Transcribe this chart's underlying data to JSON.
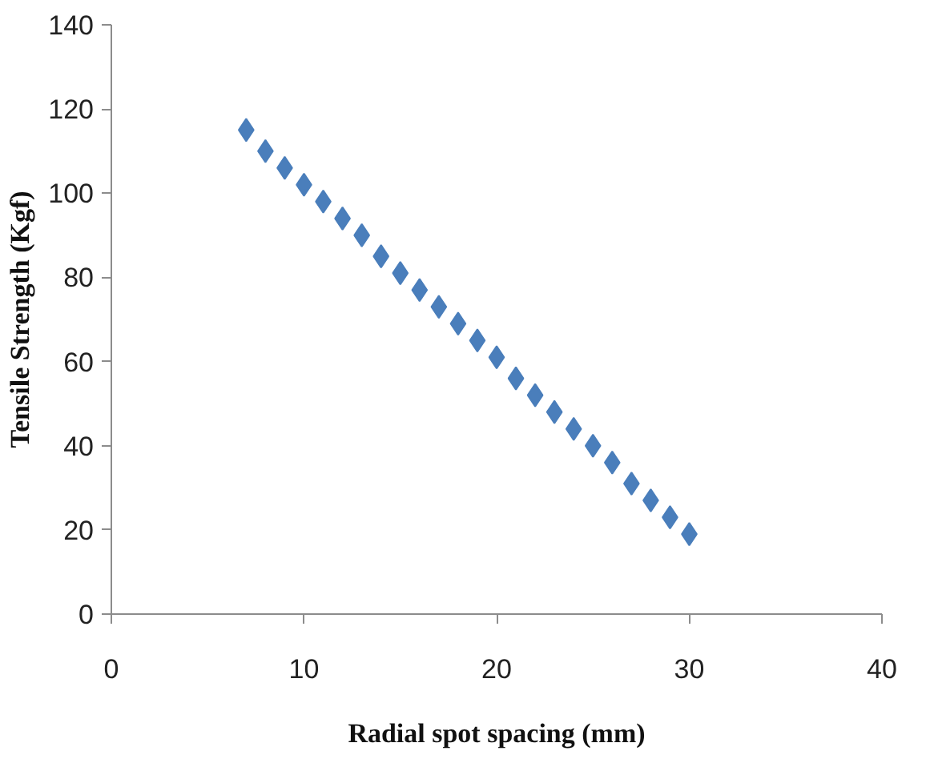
{
  "chart_data": {
    "type": "scatter",
    "xlabel": "Radial spot spacing (mm)",
    "ylabel": "Tensile Strength (Kgf)",
    "x": [
      7,
      8,
      9,
      10,
      11,
      12,
      13,
      14,
      15,
      16,
      17,
      18,
      19,
      20,
      21,
      22,
      23,
      24,
      25,
      26,
      27,
      28,
      29,
      30
    ],
    "series": [
      {
        "color": "#4a7ebb",
        "values": [
          115,
          110,
          106,
          102,
          98,
          94,
          90,
          85,
          81,
          77,
          73,
          69,
          65,
          61,
          56,
          52,
          48,
          44,
          40,
          36,
          31,
          27,
          23,
          19
        ]
      }
    ],
    "xlim": [
      0,
      40
    ],
    "xticks": [
      0,
      10,
      20,
      30,
      40
    ],
    "ylim": [
      0,
      140
    ],
    "yticks": [
      0,
      20,
      40,
      60,
      80,
      100,
      120,
      140
    ],
    "grid": false,
    "marker": "diamond"
  }
}
